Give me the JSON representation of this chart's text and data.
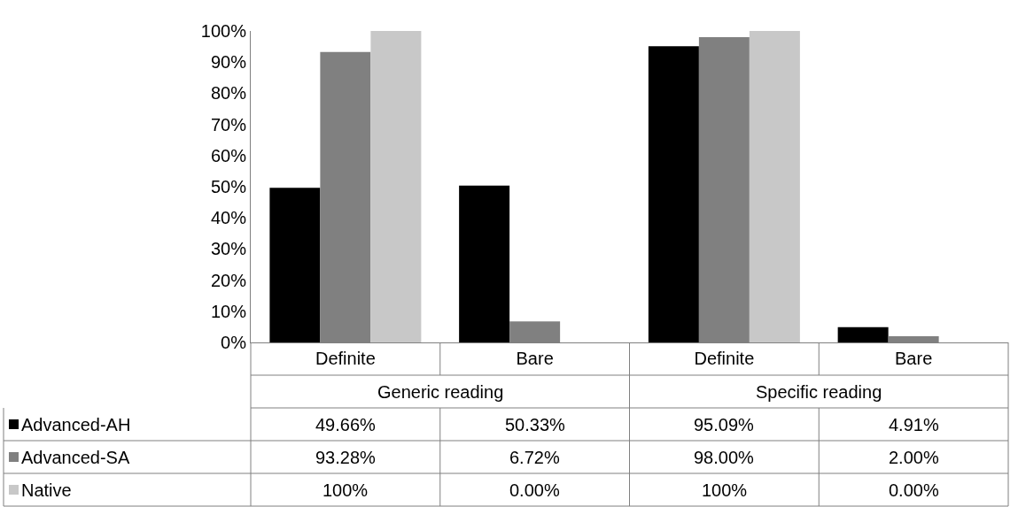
{
  "chart_data": {
    "type": "bar",
    "categories": [
      "Definite",
      "Bare",
      "Definite",
      "Bare"
    ],
    "annotations": [
      "Generic reading",
      "Specific reading"
    ],
    "series": [
      {
        "name": "Advanced-AH",
        "color": "#000000",
        "values": [
          49.66,
          50.33,
          95.09,
          4.91
        ],
        "value_labels": [
          "49.66%",
          "50.33%",
          "95.09%",
          "4.91%"
        ]
      },
      {
        "name": "Advanced-SA",
        "color": "#808080",
        "values": [
          93.28,
          6.72,
          98.0,
          2.0
        ],
        "value_labels": [
          "93.28%",
          "6.72%",
          "98.00%",
          "2.00%"
        ]
      },
      {
        "name": "Native",
        "color": "#c8c8c8",
        "values": [
          100,
          0,
          100,
          0
        ],
        "value_labels": [
          "100%",
          "0.00%",
          "100%",
          "0.00%"
        ]
      }
    ],
    "ylim": [
      0,
      100
    ],
    "yticks": [
      {
        "value": 0,
        "label": "0%"
      },
      {
        "value": 10,
        "label": "10%"
      },
      {
        "value": 20,
        "label": "20%"
      },
      {
        "value": 30,
        "label": "30%"
      },
      {
        "value": 40,
        "label": "40%"
      },
      {
        "value": 50,
        "label": "50%"
      },
      {
        "value": 60,
        "label": "60%"
      },
      {
        "value": 70,
        "label": "70%"
      },
      {
        "value": 80,
        "label": "80%"
      },
      {
        "value": 90,
        "label": "90%"
      },
      {
        "value": 100,
        "label": "100%"
      }
    ],
    "legend": "bottom left"
  }
}
